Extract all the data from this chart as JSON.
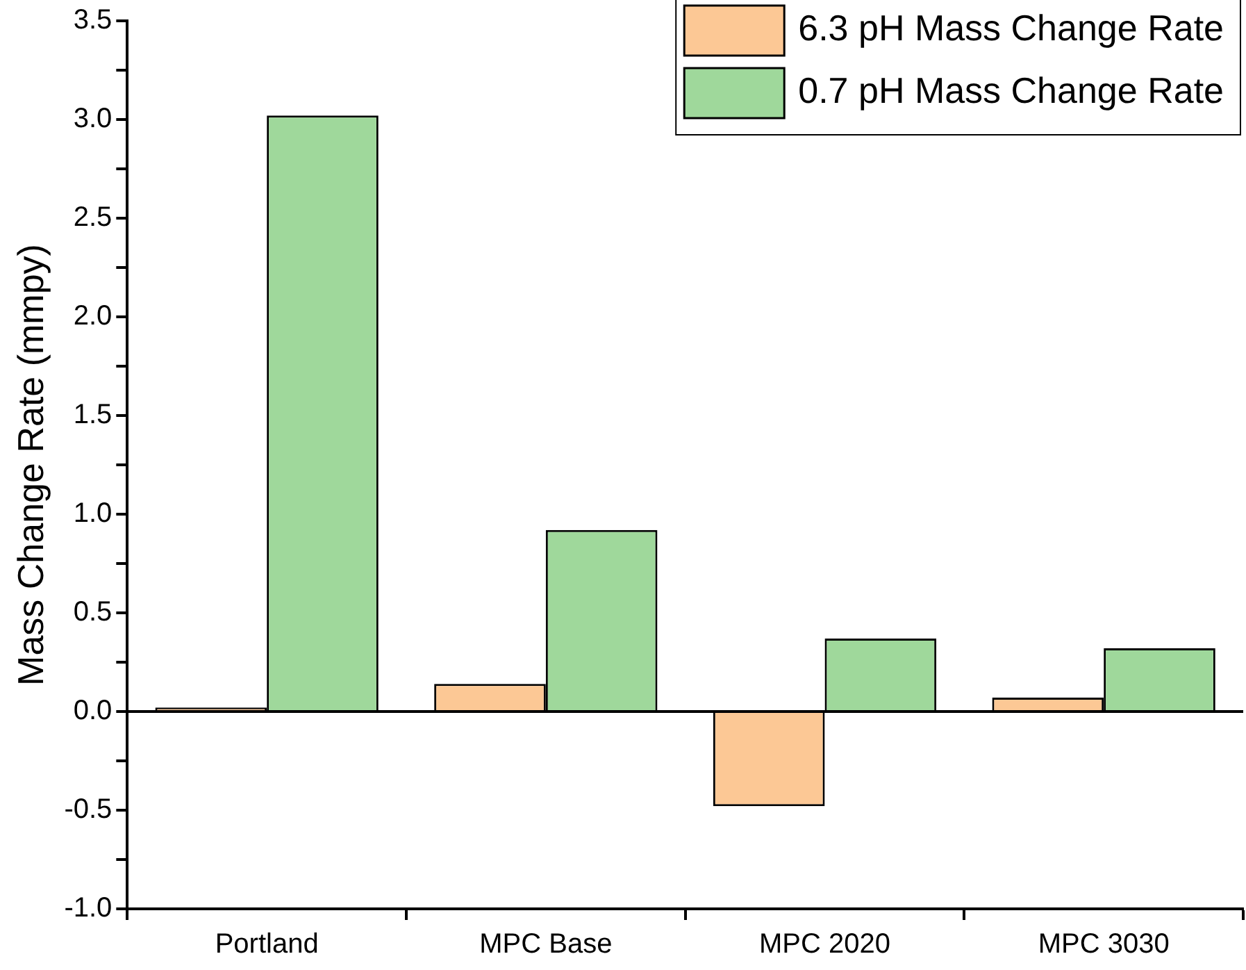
{
  "chart_data": {
    "type": "bar",
    "ylabel": "Mass Change Rate (mmpy)",
    "categories": [
      "Portland",
      "MPC Base",
      "MPC 2020",
      "MPC 3030"
    ],
    "series": [
      {
        "name": "6.3 pH Mass Change Rate",
        "color": "#fcc895",
        "values": [
          0.02,
          0.14,
          -0.48,
          0.07
        ]
      },
      {
        "name": "0.7 pH Mass Change Rate",
        "color": "#9fd89b",
        "values": [
          3.02,
          0.92,
          0.37,
          0.32
        ]
      }
    ],
    "ylim": [
      -1,
      3.5
    ],
    "yticks": [
      {
        "value": -1,
        "label": "-1.0"
      },
      {
        "value": -0.75,
        "label": null
      },
      {
        "value": -0.5,
        "label": "-0.5"
      },
      {
        "value": -0.25,
        "label": null
      },
      {
        "value": 0,
        "label": "0.0"
      },
      {
        "value": 0.25,
        "label": null
      },
      {
        "value": 0.5,
        "label": "0.5"
      },
      {
        "value": 0.75,
        "label": null
      },
      {
        "value": 1,
        "label": "1.0"
      },
      {
        "value": 1.25,
        "label": null
      },
      {
        "value": 1.5,
        "label": "1.5"
      },
      {
        "value": 1.75,
        "label": null
      },
      {
        "value": 2,
        "label": "2.0"
      },
      {
        "value": 2.25,
        "label": null
      },
      {
        "value": 2.5,
        "label": "2.5"
      },
      {
        "value": 2.75,
        "label": null
      },
      {
        "value": 3,
        "label": "3.0"
      },
      {
        "value": 3.25,
        "label": null
      },
      {
        "value": 3.5,
        "label": "3.5"
      }
    ],
    "ref_lines": [
      {
        "axis": "y",
        "value": 0,
        "color": "#000000"
      }
    ],
    "legend": "top right"
  }
}
